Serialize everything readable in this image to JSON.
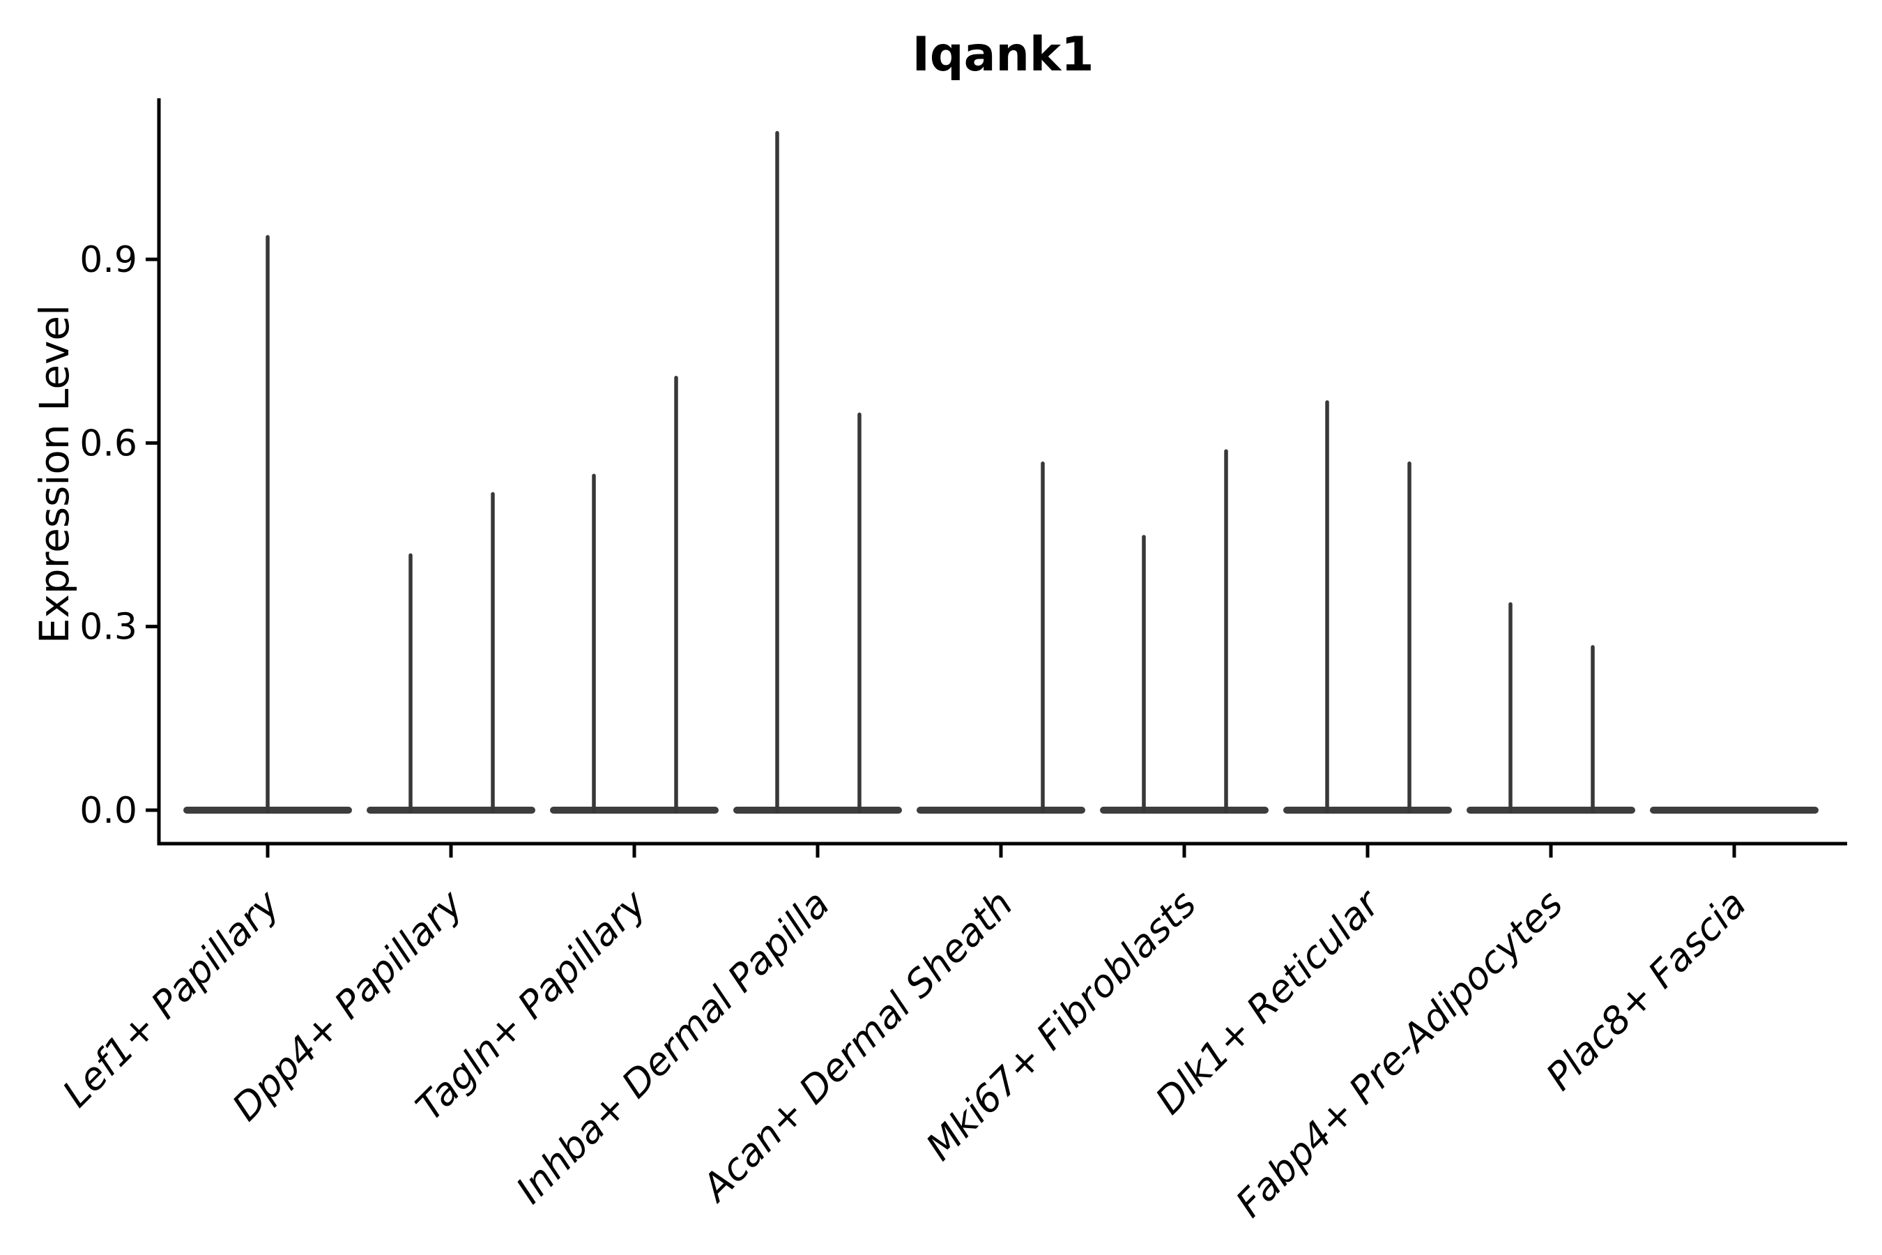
{
  "figure": {
    "title": "Iqank1",
    "ylabel": "Expression Level"
  },
  "chart_data": {
    "type": "violin",
    "title": "Iqank1",
    "xlabel": "",
    "ylabel": "Expression Level",
    "ylim": [
      0,
      1.16
    ],
    "yticks": [
      "0.0",
      "0.3",
      "0.6",
      "0.9"
    ],
    "ytick_values": [
      0.0,
      0.3,
      0.6,
      0.9
    ],
    "grid": false,
    "legend": "none",
    "categories": [
      "Lef1+ Papillary",
      "Dpp4+ Papillary",
      "Tagln+ Papillary",
      "Inhba+ Dermal Papilla",
      "Acan+ Dermal Sheath",
      "Mki67+ Fibroblasts",
      "Dlk1+ Reticular",
      "Fabp4+ Pre-Adipocytes",
      "Plac8+ Fascia"
    ],
    "violins": [
      {
        "category": "Lef1+ Papillary",
        "baseline": 0.0,
        "spikes": [
          {
            "position": "center",
            "max_expression": 0.94
          }
        ]
      },
      {
        "category": "Dpp4+ Papillary",
        "baseline": 0.0,
        "spikes": [
          {
            "position": "left",
            "max_expression": 0.42
          },
          {
            "position": "right",
            "max_expression": 0.52
          }
        ]
      },
      {
        "category": "Tagln+ Papillary",
        "baseline": 0.0,
        "spikes": [
          {
            "position": "left",
            "max_expression": 0.55
          },
          {
            "position": "right",
            "max_expression": 0.71
          }
        ]
      },
      {
        "category": "Inhba+ Dermal Papilla",
        "baseline": 0.0,
        "spikes": [
          {
            "position": "left",
            "max_expression": 1.11
          },
          {
            "position": "right",
            "max_expression": 0.65
          }
        ]
      },
      {
        "category": "Acan+ Dermal Sheath",
        "baseline": 0.0,
        "spikes": [
          {
            "position": "right",
            "max_expression": 0.57
          }
        ]
      },
      {
        "category": "Mki67+ Fibroblasts",
        "baseline": 0.0,
        "spikes": [
          {
            "position": "left",
            "max_expression": 0.45
          },
          {
            "position": "right",
            "max_expression": 0.59
          }
        ]
      },
      {
        "category": "Dlk1+ Reticular",
        "baseline": 0.0,
        "spikes": [
          {
            "position": "left",
            "max_expression": 0.67
          },
          {
            "position": "right",
            "max_expression": 0.57
          }
        ]
      },
      {
        "category": "Fabp4+ Pre-Adipocytes",
        "baseline": 0.0,
        "spikes": [
          {
            "position": "left",
            "max_expression": 0.34
          },
          {
            "position": "right",
            "max_expression": 0.27
          }
        ]
      },
      {
        "category": "Plac8+ Fascia",
        "baseline": 0.0,
        "spikes": []
      }
    ],
    "colors": {
      "violin": "#3d3d3d",
      "spike": "#383838",
      "axis": "#000000",
      "text": "#000000",
      "background": "#ffffff"
    }
  }
}
